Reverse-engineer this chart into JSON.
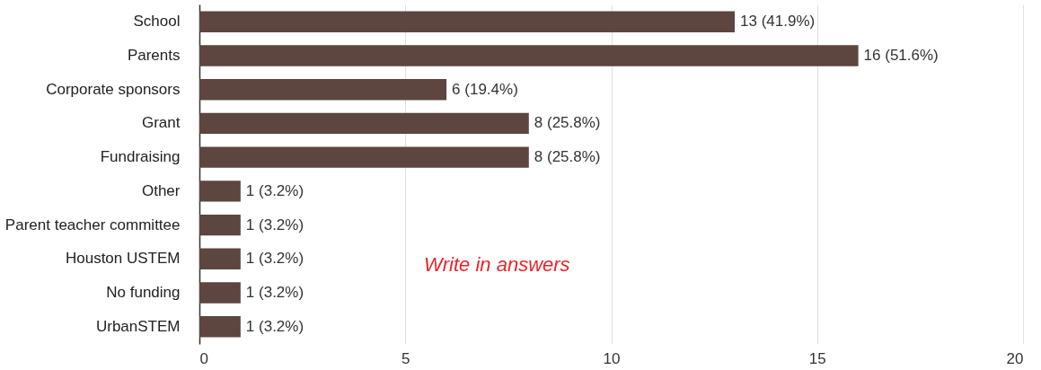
{
  "chart_data": {
    "type": "bar",
    "orientation": "horizontal",
    "categories": [
      "School",
      "Parents",
      "Corporate sponsors",
      "Grant",
      "Fundraising",
      "Other",
      "Parent teacher committee",
      "Houston USTEM",
      "No funding",
      "UrbanSTEM"
    ],
    "values": [
      13,
      16,
      6,
      8,
      8,
      1,
      1,
      1,
      1,
      1
    ],
    "value_labels": [
      "13 (41.9%)",
      "16 (51.6%)",
      "6 (19.4%)",
      "8 (25.8%)",
      "8 (25.8%)",
      "1 (3.2%)",
      "1 (3.2%)",
      "1 (3.2%)",
      "1 (3.2%)",
      "1 (3.2%)"
    ],
    "color": "#5d4640",
    "xlim": [
      0,
      20
    ],
    "xticks": [
      0,
      5,
      10,
      15,
      20
    ],
    "grid": "x",
    "annotations": [
      "Write in answers"
    ]
  }
}
